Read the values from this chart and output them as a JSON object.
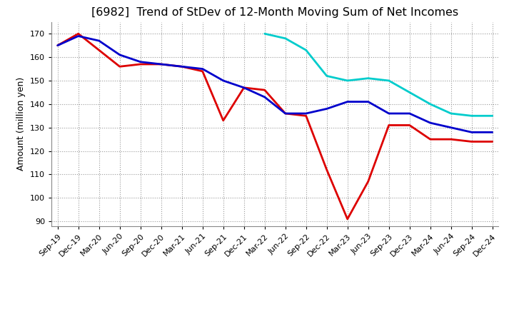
{
  "title": "[6982]  Trend of StDev of 12-Month Moving Sum of Net Incomes",
  "ylabel": "Amount (million yen)",
  "background_color": "#ffffff",
  "grid_color": "#999999",
  "title_fontsize": 11.5,
  "label_fontsize": 9,
  "tick_fontsize": 8,
  "x_labels": [
    "Sep-19",
    "Dec-19",
    "Mar-20",
    "Jun-20",
    "Sep-20",
    "Dec-20",
    "Mar-21",
    "Jun-21",
    "Sep-21",
    "Dec-21",
    "Mar-22",
    "Jun-22",
    "Sep-22",
    "Dec-22",
    "Mar-23",
    "Jun-23",
    "Sep-23",
    "Dec-23",
    "Mar-24",
    "Jun-24",
    "Sep-24",
    "Dec-24"
  ],
  "ylim": [
    88,
    175
  ],
  "yticks": [
    90,
    100,
    110,
    120,
    130,
    140,
    150,
    160,
    170
  ],
  "series": {
    "3 Years": {
      "color": "#dd0000",
      "values": [
        165,
        170,
        163,
        156,
        157,
        157,
        156,
        154,
        133,
        147,
        146,
        136,
        135,
        112,
        91,
        107,
        131,
        131,
        125,
        125,
        124,
        124
      ]
    },
    "5 Years": {
      "color": "#0000cc",
      "values": [
        165,
        169,
        167,
        161,
        158,
        157,
        156,
        155,
        150,
        147,
        143,
        136,
        136,
        138,
        141,
        141,
        136,
        136,
        132,
        130,
        128,
        128
      ]
    },
    "7 Years": {
      "color": "#00cccc",
      "values": [
        null,
        null,
        null,
        null,
        null,
        null,
        null,
        null,
        null,
        null,
        170,
        168,
        163,
        152,
        150,
        151,
        150,
        145,
        140,
        136,
        135,
        135
      ]
    },
    "10 Years": {
      "color": "#008800",
      "values": [
        null,
        null,
        null,
        null,
        null,
        null,
        null,
        null,
        null,
        null,
        null,
        null,
        null,
        null,
        null,
        null,
        null,
        null,
        null,
        null,
        null,
        null
      ]
    }
  }
}
